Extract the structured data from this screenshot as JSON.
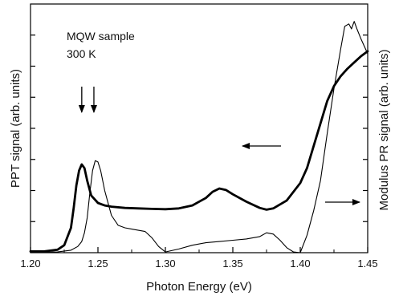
{
  "chart_data": {
    "type": "line",
    "title": "",
    "xlabel": "Photon Energy (eV)",
    "ylabel_left": "PPT signal (arb. units)",
    "ylabel_right": "Modulus PR signal (arb. units)",
    "xlim": [
      1.2,
      1.45
    ],
    "ylim": [
      0,
      100
    ],
    "x_ticks": [
      "1.20",
      "1.25",
      "1.30",
      "1.35",
      "1.40",
      "1.45"
    ],
    "x_tick_values": [
      1.2,
      1.25,
      1.3,
      1.35,
      1.4,
      1.45
    ],
    "left_y_minor_ticks": 7,
    "right_y_minor_ticks": 7,
    "grid": false,
    "annotations": [
      "MQW sample",
      "300 K"
    ],
    "series": [
      {
        "style": "thick",
        "axis": "left",
        "color": "#000000",
        "x": [
          1.2,
          1.21,
          1.22,
          1.225,
          1.23,
          1.232,
          1.234,
          1.236,
          1.238,
          1.24,
          1.242,
          1.245,
          1.25,
          1.255,
          1.26,
          1.27,
          1.28,
          1.29,
          1.3,
          1.31,
          1.32,
          1.33,
          1.335,
          1.34,
          1.345,
          1.35,
          1.36,
          1.37,
          1.375,
          1.38,
          1.39,
          1.4,
          1.405,
          1.41,
          1.415,
          1.42,
          1.425,
          1.43,
          1.435,
          1.44,
          1.445,
          1.45
        ],
        "y": [
          0.5,
          0.5,
          1.2,
          3,
          10,
          18,
          27,
          33,
          35.5,
          34,
          29,
          23,
          20,
          19,
          18.5,
          18,
          17.8,
          17.6,
          17.5,
          17.8,
          19,
          22,
          24.5,
          25.8,
          25.2,
          23.5,
          20.5,
          18,
          17.3,
          17.8,
          21,
          28,
          34,
          43,
          52,
          61,
          67,
          71,
          74,
          76.5,
          79,
          81
        ]
      },
      {
        "style": "thin",
        "axis": "right",
        "color": "#000000",
        "x": [
          1.2,
          1.22,
          1.23,
          1.235,
          1.238,
          1.24,
          1.242,
          1.244,
          1.246,
          1.248,
          1.25,
          1.252,
          1.255,
          1.26,
          1.265,
          1.27,
          1.275,
          1.28,
          1.285,
          1.29,
          1.295,
          1.3,
          1.31,
          1.32,
          1.33,
          1.34,
          1.35,
          1.36,
          1.37,
          1.375,
          1.38,
          1.385,
          1.39,
          1.395,
          1.4,
          1.405,
          1.41,
          1.415,
          1.42,
          1.425,
          1.43,
          1.433,
          1.436,
          1.438,
          1.44,
          1.442,
          1.445,
          1.45
        ],
        "y": [
          0,
          0.3,
          1,
          2.5,
          4.5,
          8,
          14,
          24,
          33,
          37,
          36.5,
          33,
          25,
          15,
          11,
          10,
          9.5,
          9,
          8.5,
          6,
          2.5,
          0.3,
          1.5,
          3,
          4,
          4.5,
          5,
          5.5,
          6.5,
          8,
          7.5,
          5,
          2,
          0.3,
          0,
          7,
          17,
          29,
          48,
          66,
          82,
          91,
          92,
          90,
          93,
          90,
          86,
          80
        ]
      }
    ],
    "arrows": [
      {
        "points_to": "PPT peak 1",
        "direction": "down",
        "at_x": 1.238
      },
      {
        "points_to": "PPT peak 2",
        "direction": "down",
        "at_x": 1.247
      },
      {
        "points_to": "left axis",
        "direction": "left",
        "for_series": "thick"
      },
      {
        "points_to": "right axis",
        "direction": "right",
        "for_series": "thin"
      }
    ]
  }
}
